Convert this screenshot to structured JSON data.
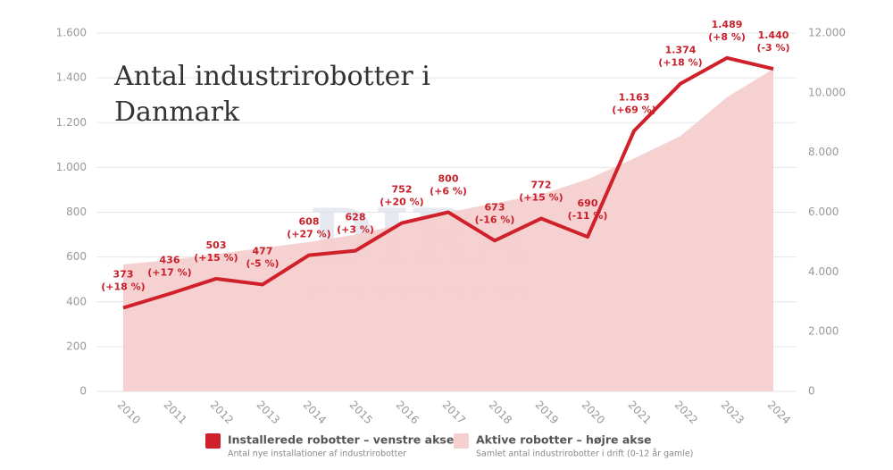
{
  "chart_data": {
    "type": "line-area",
    "title": "Antal industrirobotter i Danmark",
    "watermark": {
      "logo": "DIRA",
      "text": "DANSK ROBOT NETVÆRK"
    },
    "categories": [
      "2010",
      "2011",
      "2012",
      "2013",
      "2014",
      "2015",
      "2016",
      "2017",
      "2018",
      "2019",
      "2020",
      "2021",
      "2022",
      "2023",
      "2024"
    ],
    "ylim": [
      0,
      1600
    ],
    "yticks": [
      0,
      200,
      400,
      600,
      800,
      {
        "value": 1000,
        "label": "1.000"
      },
      {
        "value": 1200,
        "label": "1.200"
      },
      {
        "value": 1400,
        "label": "1.400"
      },
      {
        "value": 1600,
        "label": "1.600"
      }
    ],
    "y2lim": [
      0,
      12000
    ],
    "y2ticks": [
      0,
      {
        "value": 2000,
        "label": "2.000"
      },
      {
        "value": 4000,
        "label": "4.000"
      },
      {
        "value": 6000,
        "label": "6.000"
      },
      {
        "value": 8000,
        "label": "8.000"
      },
      {
        "value": 10000,
        "label": "10.000"
      },
      {
        "value": 12000,
        "label": "12.000"
      }
    ],
    "grid": true,
    "series": [
      {
        "name": "Installerede robotter – venstre akse",
        "description": "Antal nye installationer af industrirobotter",
        "color": "#d0202a",
        "kind": "line",
        "values": [
          373,
          436,
          503,
          477,
          608,
          628,
          752,
          800,
          673,
          772,
          690,
          1163,
          1374,
          1489,
          1440
        ],
        "value_labels": [
          "373",
          "436",
          "503",
          "477",
          "608",
          "628",
          "752",
          "800",
          "673",
          "772",
          "690",
          "1.163",
          "1.374",
          "1.489",
          "1.440"
        ],
        "change_labels": [
          "(+18 %)",
          "(+17 %)",
          "(+15 %)",
          "(-5 %)",
          "(+27 %)",
          "(+3 %)",
          "(+20 %)",
          "(+6 %)",
          "(-16 %)",
          "(+15 %)",
          "(-11 %)",
          "(+69 %)",
          "(+18 %)",
          "(+8 %)",
          "(-3 %)"
        ]
      },
      {
        "name": "Aktive robotter – højre akse",
        "description": "Samlet antal industrirobotter i drift (0-12 år gamle)",
        "color": "#f6cfcf",
        "kind": "area",
        "axis": "y2",
        "values": [
          4250,
          4400,
          4600,
          4800,
          5000,
          5250,
          5600,
          6000,
          6300,
          6600,
          7100,
          7800,
          8550,
          9850,
          10800
        ]
      }
    ]
  }
}
